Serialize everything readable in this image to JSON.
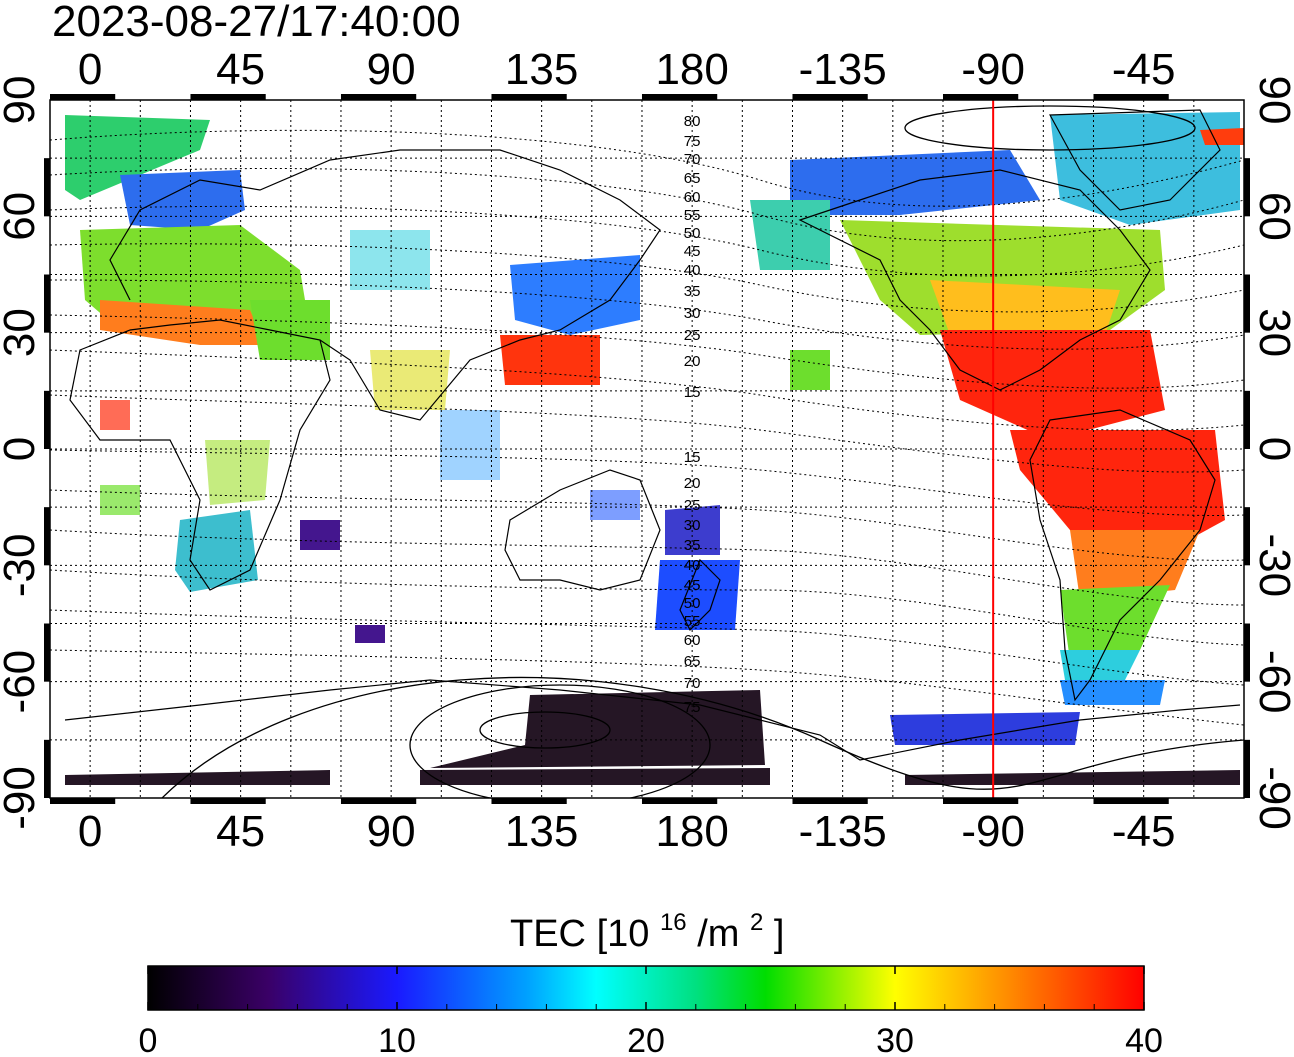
{
  "timestamp": "2023-08-27/17:40:00",
  "map": {
    "lon_ticks": [
      "0",
      "45",
      "90",
      "135",
      "180",
      "-135",
      "-90",
      "-45"
    ],
    "lon_values": [
      0,
      45,
      90,
      135,
      180,
      225,
      270,
      315
    ],
    "lat_ticks_left": [
      "90",
      "60",
      "30",
      "0",
      "-30",
      "-60",
      "-90"
    ],
    "lat_ticks_right": [
      "90",
      "60",
      "30",
      "0",
      "-30",
      "-60",
      "-90"
    ],
    "lat_values": [
      90,
      60,
      30,
      0,
      -30,
      -60,
      -90
    ],
    "lon_range": [
      -12,
      345
    ],
    "lat_range": [
      -90,
      90
    ],
    "grid": true,
    "marker_longitude": "-90",
    "marker_color": "#ff0000",
    "contour_labels_north": [
      "80",
      "75",
      "70",
      "65",
      "60",
      "55",
      "50",
      "45",
      "40",
      "35",
      "30",
      "25",
      "20",
      "15"
    ],
    "contour_labels_south": [
      "15",
      "20",
      "25",
      "30",
      "35",
      "40",
      "45",
      "50",
      "55",
      "60",
      "65",
      "70",
      "75"
    ]
  },
  "colorbar": {
    "title": "TEC",
    "unit_base": "[10",
    "unit_exp": "16",
    "unit_mid": "/m",
    "unit_exp2": "2",
    "unit_end": "]",
    "tick_labels": [
      "0",
      "10",
      "20",
      "30",
      "40"
    ],
    "range": [
      0,
      40
    ]
  }
}
